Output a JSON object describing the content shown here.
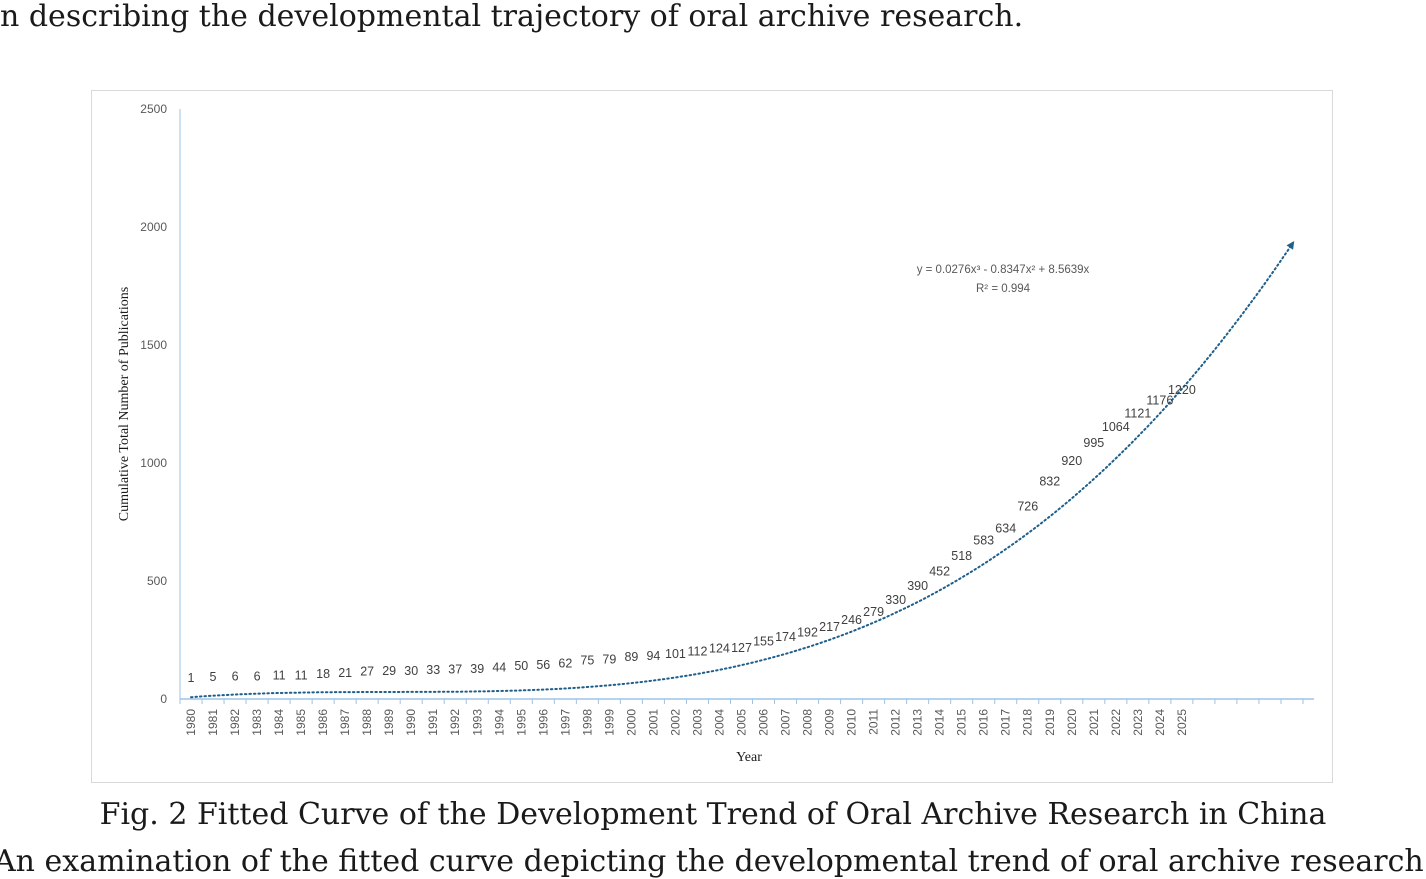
{
  "page": {
    "top_line": "n describing the developmental trajectory of oral archive research.",
    "caption": "Fig. 2 Fitted Curve of the Development Trend of Oral Archive Research in China",
    "next_line": "An examination of the fitted curve depicting the developmental trend of oral archive research"
  },
  "chart_data": {
    "type": "line",
    "title": "",
    "xlabel": "Year",
    "ylabel": "Cumulative Total Number of Publications",
    "ylim": [
      0,
      2500
    ],
    "yticks": [
      "0",
      "500",
      "1000",
      "1500",
      "2000",
      "2500"
    ],
    "categories": [
      "1980",
      "1981",
      "1982",
      "1983",
      "1984",
      "1985",
      "1986",
      "1987",
      "1988",
      "1989",
      "1990",
      "1991",
      "1992",
      "1993",
      "1994",
      "1995",
      "1996",
      "1997",
      "1998",
      "1999",
      "2000",
      "2001",
      "2002",
      "2003",
      "2004",
      "2005",
      "2006",
      "2007",
      "2008",
      "2009",
      "2010",
      "2011",
      "2012",
      "2013",
      "2014",
      "2015",
      "2016",
      "2017",
      "2018",
      "2019",
      "2020",
      "2021",
      "2022",
      "2023",
      "2024",
      "2025"
    ],
    "series": [
      {
        "values": [
          1,
          5,
          6,
          6,
          11,
          11,
          18,
          21,
          27,
          29,
          30,
          33,
          37,
          39,
          44,
          50,
          56,
          62,
          75,
          79,
          89,
          94,
          101,
          112,
          124,
          127,
          155,
          174,
          192,
          217,
          246,
          279,
          330,
          390,
          452,
          518,
          583,
          634,
          726,
          832,
          920,
          995,
          1064,
          1121,
          1176,
          1220
        ],
        "show_markers": false,
        "data_labels": true
      }
    ],
    "trendline": {
      "type": "polynomial-3",
      "coefficients": [
        0.0276,
        -0.8347,
        8.5639,
        0
      ],
      "style": "dotted",
      "color": "#1f5f8b",
      "extends_periods": 5,
      "equation_lines": [
        "y = 0.0276x³ - 0.8347x² + 8.5639x",
        "R² = 0.994"
      ],
      "r_squared": 0.994
    },
    "grid": false,
    "legend": "none",
    "axis_color": "#9dc3e6"
  }
}
